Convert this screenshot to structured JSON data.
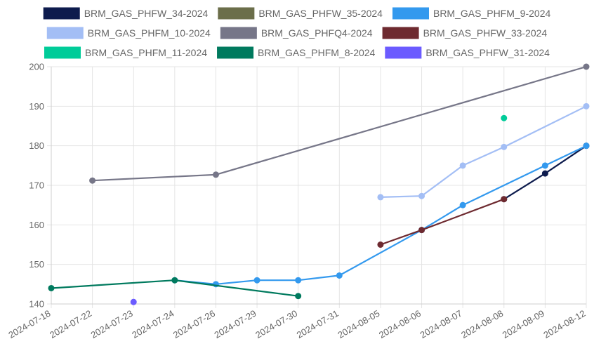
{
  "chart_data": {
    "type": "line",
    "categories": [
      "2024-07-18",
      "2024-07-22",
      "2024-07-23",
      "2024-07-24",
      "2024-07-26",
      "2024-07-29",
      "2024-07-30",
      "2024-07-31",
      "2024-08-05",
      "2024-08-06",
      "2024-08-07",
      "2024-08-08",
      "2024-08-09",
      "2024-08-12"
    ],
    "ylim": [
      140,
      200
    ],
    "yticks": [
      140,
      150,
      160,
      170,
      180,
      190,
      200
    ],
    "grid": true,
    "legend_position": "top",
    "series": [
      {
        "name": "BRM_GAS_PHFW_34-2024",
        "color": "#0d1b4d",
        "values": [
          null,
          null,
          null,
          null,
          null,
          null,
          null,
          null,
          null,
          null,
          null,
          166.5,
          173,
          180
        ]
      },
      {
        "name": "BRM_GAS_PHFW_35-2024",
        "color": "#6b6e4a",
        "values": [
          null,
          null,
          null,
          null,
          null,
          null,
          null,
          null,
          null,
          null,
          null,
          null,
          null,
          null
        ]
      },
      {
        "name": "BRM_GAS_PHFM_9-2024",
        "color": "#3399ee",
        "values": [
          null,
          null,
          null,
          146,
          145,
          146,
          146,
          147.2,
          null,
          158.7,
          165,
          null,
          175,
          180
        ]
      },
      {
        "name": "BRM_GAS_PHFM_10-2024",
        "color": "#a3bef5",
        "values": [
          null,
          null,
          null,
          null,
          null,
          null,
          null,
          null,
          167,
          167.3,
          175,
          179.7,
          null,
          190
        ]
      },
      {
        "name": "BRM_GAS_PHFQ4-2024",
        "color": "#767688",
        "values": [
          null,
          171.2,
          null,
          null,
          172.7,
          null,
          null,
          null,
          null,
          null,
          null,
          null,
          null,
          200
        ]
      },
      {
        "name": "BRM_GAS_PHFW_33-2024",
        "color": "#6e2a30",
        "values": [
          null,
          null,
          null,
          null,
          null,
          null,
          null,
          null,
          155,
          158.7,
          null,
          166.5,
          null,
          null
        ]
      },
      {
        "name": "BRM_GAS_PHFM_11-2024",
        "color": "#00cc99",
        "values": [
          null,
          null,
          null,
          null,
          null,
          null,
          null,
          null,
          null,
          null,
          null,
          187,
          null,
          null
        ]
      },
      {
        "name": "BRM_GAS_PHFM_8-2024",
        "color": "#007a5e",
        "values": [
          144,
          null,
          null,
          146,
          null,
          null,
          142,
          null,
          null,
          null,
          null,
          null,
          null,
          null
        ]
      },
      {
        "name": "BRM_GAS_PHFW_31-2024",
        "color": "#6b5bff",
        "values": [
          null,
          null,
          140.5,
          null,
          null,
          null,
          null,
          null,
          null,
          null,
          null,
          null,
          null,
          null
        ]
      }
    ]
  }
}
